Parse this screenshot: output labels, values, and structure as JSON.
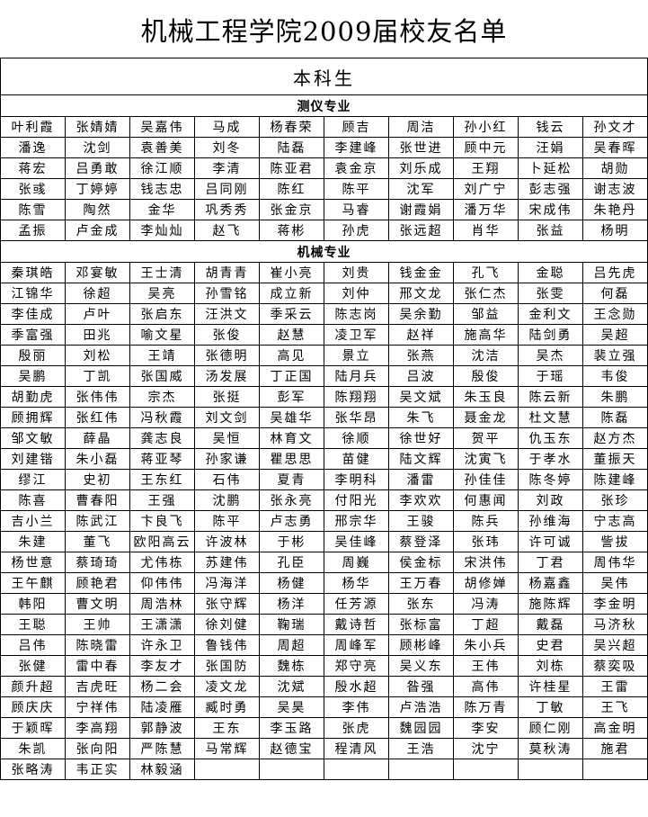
{
  "title": "机械工程学院2009届校友名单",
  "level": "本科生",
  "majors": [
    {
      "name": "测仪专业",
      "rows": [
        [
          "叶利霞",
          "张婧婧",
          "吴嘉伟",
          "马成",
          "杨春荣",
          "顾吉",
          "周洁",
          "孙小红",
          "钱云",
          "孙文才"
        ],
        [
          "潘逸",
          "沈剑",
          "袁善美",
          "刘冬",
          "陆磊",
          "李建峰",
          "张世进",
          "顾中元",
          "汪娟",
          "吴春晖"
        ],
        [
          "蒋宏",
          "吕勇敢",
          "徐江顺",
          "李清",
          "陈亚君",
          "袁金京",
          "刘乐成",
          "王翔",
          "卜延松",
          "胡勋"
        ],
        [
          "张彧",
          "丁婷婷",
          "钱志忠",
          "吕同刚",
          "陈红",
          "陈平",
          "沈军",
          "刘广宁",
          "彭志强",
          "谢志波"
        ],
        [
          "陈雪",
          "陶然",
          "金华",
          "巩秀秀",
          "张金京",
          "马睿",
          "谢霞娟",
          "潘万华",
          "宋成伟",
          "朱艳丹"
        ],
        [
          "孟振",
          "卢金成",
          "李灿灿",
          "赵飞",
          "蒋彬",
          "孙虎",
          "张远超",
          "肖华",
          "张益",
          "杨明"
        ]
      ]
    },
    {
      "name": "机械专业",
      "rows": [
        [
          "秦琪皓",
          "邓宴敏",
          "王士清",
          "胡青青",
          "崔小亮",
          "刘贵",
          "钱金金",
          "孔飞",
          "金聪",
          "吕先虎"
        ],
        [
          "江锦华",
          "徐超",
          "吴亮",
          "孙雪铭",
          "成立新",
          "刘仲",
          "邢文龙",
          "张仁杰",
          "张雯",
          "何磊"
        ],
        [
          "李佳成",
          "卢叶",
          "张启东",
          "汪洪文",
          "季采云",
          "陈志岗",
          "吴余勤",
          "邹益",
          "金利文",
          "王念勋"
        ],
        [
          "季富强",
          "田兆",
          "喻文星",
          "张俊",
          "赵慧",
          "凌卫军",
          "赵祥",
          "施高华",
          "陆剑勇",
          "吴超"
        ],
        [
          "殷丽",
          "刘松",
          "王靖",
          "张德明",
          "高见",
          "景立",
          "张燕",
          "沈洁",
          "吴杰",
          "裴立强"
        ],
        [
          "吴鹏",
          "丁凯",
          "张国威",
          "汤发展",
          "丁正国",
          "陆月兵",
          "吕波",
          "殷俊",
          "于瑶",
          "韦俊"
        ],
        [
          "胡勤虎",
          "张伟伟",
          "宗杰",
          "张挺",
          "彭军",
          "陈翔翔",
          "吴文斌",
          "朱玉良",
          "陈云新",
          "朱鹏"
        ],
        [
          "顾拥辉",
          "张红伟",
          "冯秋霞",
          "刘文剑",
          "吴雄华",
          "张华昂",
          "朱飞",
          "聂金龙",
          "杜文慧",
          "陈磊"
        ],
        [
          "邹文敏",
          "薛晶",
          "龚志良",
          "吴恒",
          "林育文",
          "徐顺",
          "徐世好",
          "贺平",
          "仇玉东",
          "赵方杰"
        ],
        [
          "刘建锴",
          "朱小磊",
          "蒋亚琴",
          "孙家谦",
          "瞿思思",
          "苗健",
          "陆文辉",
          "沈寅飞",
          "于孝水",
          "董振天"
        ],
        [
          "缪江",
          "史初",
          "王东红",
          "石伟",
          "夏青",
          "李明科",
          "潘雷",
          "孙佳佳",
          "陈冬婷",
          "陈建峰"
        ],
        [
          "陈喜",
          "曹春阳",
          "王强",
          "沈鹏",
          "张永亮",
          "付阳光",
          "李欢欢",
          "何惠闻",
          "刘政",
          "张珍"
        ],
        [
          "吉小兰",
          "陈武江",
          "卞良飞",
          "陈平",
          "卢志勇",
          "邢宗华",
          "王骏",
          "陈兵",
          "孙维海",
          "宁志高"
        ],
        [
          "朱建",
          "董飞",
          "欧阳高云",
          "许波林",
          "于彬",
          "吴佳峰",
          "蔡登泽",
          "张玮",
          "许可诚",
          "訾拔"
        ],
        [
          "杨世意",
          "蔡琦琦",
          "尤伟栋",
          "苏建伟",
          "孔臣",
          "周巍",
          "侯金标",
          "宋洪伟",
          "丁君",
          "周伟华"
        ],
        [
          "王午麒",
          "顾艳君",
          "仰伟伟",
          "冯海洋",
          "杨健",
          "杨华",
          "王万春",
          "胡修婵",
          "杨嘉鑫",
          "吴伟"
        ],
        [
          "韩阳",
          "曹文明",
          "周浩林",
          "张守辉",
          "杨洋",
          "任芳源",
          "张东",
          "冯涛",
          "施陈辉",
          "李金明"
        ],
        [
          "王聪",
          "王帅",
          "王潇潇",
          "徐刘健",
          "鞠瑞",
          "戴诗哲",
          "张标富",
          "丁超",
          "戴磊",
          "马济秋"
        ],
        [
          "吕伟",
          "陈晓雷",
          "许永卫",
          "鲁钱伟",
          "周超",
          "周峰军",
          "顾彬峰",
          "朱小兵",
          "史君",
          "吴兴超"
        ],
        [
          "张健",
          "雷中春",
          "李友才",
          "张国防",
          "魏栋",
          "郑守亮",
          "吴义东",
          "王伟",
          "刘栋",
          "蔡奕吸"
        ],
        [
          "颜升超",
          "吉虎旺",
          "杨二会",
          "凌文龙",
          "沈斌",
          "殷水超",
          "昝强",
          "高伟",
          "许桂星",
          "王雷"
        ],
        [
          "顾庆庆",
          "宁祥伟",
          "陆凌雁",
          "臧时勇",
          "吴昊",
          "李伟",
          "卢浩浩",
          "陈万青",
          "丁敏",
          "王飞"
        ],
        [
          "于颖晖",
          "李高翔",
          "郭静波",
          "王东",
          "李玉路",
          "张虎",
          "魏园园",
          "李安",
          "顾仁刚",
          "高金明"
        ],
        [
          "朱凯",
          "张向阳",
          "严陈慧",
          "马常辉",
          "赵德宝",
          "程清风",
          "王浩",
          "沈宁",
          "莫秋涛",
          "施君"
        ],
        [
          "张略涛",
          "韦正实",
          "林毅涵",
          "",
          "",
          "",
          "",
          "",
          "",
          ""
        ]
      ]
    }
  ]
}
